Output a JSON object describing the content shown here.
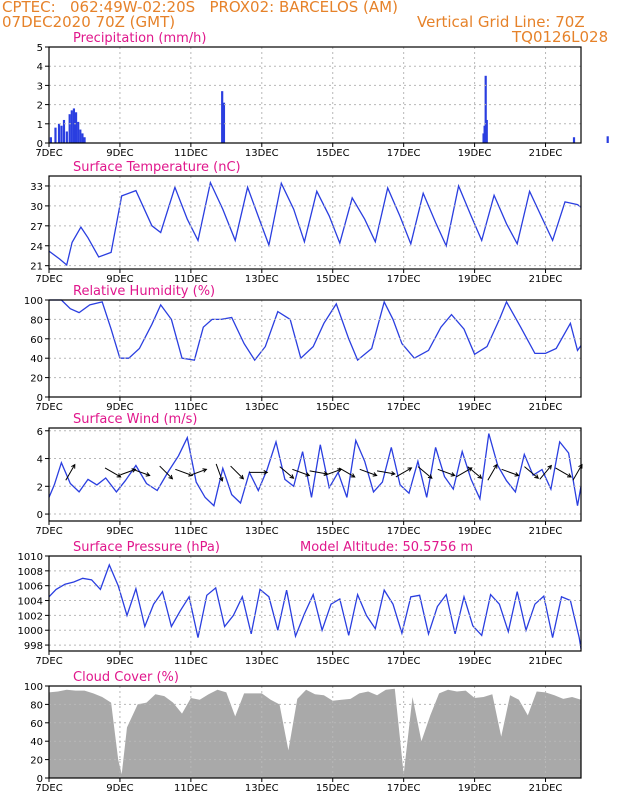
{
  "header": {
    "line1": "CPTEC:   062:49W-02:20S   PROX02: BARCELOS (AM)",
    "line2": "07DEC2020 70Z (GMT)",
    "grid_note": "Vertical Grid Line: 70Z",
    "run_code": "TQ0126L028"
  },
  "colors": {
    "header": "#e6822a",
    "title": "#e0178c",
    "series": "#2a3ee0",
    "cloud": "#a9a9a9",
    "grid": "#b8b8b8"
  },
  "x_axis": {
    "start": "07DEC2020",
    "end": "22DEC2020",
    "tick_labels": [
      "7DEC",
      "9DEC",
      "11DEC",
      "13DEC",
      "15DEC",
      "17DEC",
      "19DEC",
      "21DEC"
    ],
    "tick_days": [
      0,
      2,
      4,
      6,
      8,
      10,
      12,
      14
    ]
  },
  "chart_data": [
    {
      "id": "precip",
      "type": "bar",
      "title": "Precipitation  (mm/h)",
      "ylim": [
        0,
        5
      ],
      "yticks": [
        0,
        1,
        2,
        3,
        4,
        5
      ],
      "x": [
        0.05,
        0.18,
        0.28,
        0.35,
        0.42,
        0.5,
        0.58,
        0.64,
        0.7,
        0.76,
        0.82,
        0.88,
        0.94,
        1.0,
        4.88,
        4.93,
        12.25,
        12.28,
        12.31,
        12.34,
        14.8,
        15.75
      ],
      "values": [
        0.3,
        0.8,
        1.0,
        0.9,
        1.2,
        0.6,
        1.5,
        1.7,
        1.8,
        1.6,
        1.1,
        0.7,
        0.5,
        0.3,
        2.7,
        2.1,
        0.5,
        0.9,
        3.5,
        1.2,
        0.3,
        0.35
      ]
    },
    {
      "id": "temp",
      "type": "line",
      "title": "Surface Temperature (nC)",
      "ylim": [
        20.5,
        34.5
      ],
      "yticks": [
        21,
        24,
        27,
        30,
        33
      ],
      "x": [
        0,
        0.3,
        0.5,
        0.65,
        0.9,
        1.1,
        1.4,
        1.75,
        2.05,
        2.45,
        2.9,
        3.15,
        3.55,
        3.9,
        4.2,
        4.55,
        4.9,
        5.25,
        5.6,
        5.9,
        6.2,
        6.55,
        6.9,
        7.2,
        7.55,
        7.9,
        8.2,
        8.55,
        8.9,
        9.2,
        9.55,
        9.9,
        10.2,
        10.55,
        10.9,
        11.2,
        11.55,
        11.9,
        12.2,
        12.55,
        12.9,
        13.2,
        13.55,
        13.9,
        14.2,
        14.55,
        14.9,
        15
      ],
      "values": [
        23.2,
        22,
        21.1,
        24.5,
        26.8,
        25.2,
        22.3,
        23,
        31.5,
        32.3,
        27,
        26,
        32.8,
        28,
        24.8,
        33.5,
        29.5,
        24.8,
        32.8,
        28.4,
        24.1,
        33.4,
        29.5,
        24.6,
        32.2,
        28.5,
        24.4,
        31.2,
        28,
        24.6,
        32.7,
        28.4,
        24.3,
        31.9,
        27.5,
        24,
        33,
        28.5,
        24.8,
        31.6,
        27.3,
        24.3,
        32.2,
        28.2,
        24.8,
        30.6,
        30.2,
        29.8
      ]
    },
    {
      "id": "rh",
      "type": "line",
      "title": "Relative Humidity (%)",
      "ylim": [
        0,
        100
      ],
      "yticks": [
        0,
        20,
        40,
        60,
        80,
        100
      ],
      "x": [
        0,
        0.35,
        0.6,
        0.85,
        1.15,
        1.5,
        1.75,
        2.0,
        2.25,
        2.55,
        2.9,
        3.15,
        3.45,
        3.75,
        4.1,
        4.35,
        4.6,
        4.85,
        5.15,
        5.5,
        5.8,
        6.1,
        6.45,
        6.8,
        7.1,
        7.45,
        7.75,
        8.1,
        8.45,
        8.7,
        9.1,
        9.45,
        9.7,
        9.95,
        10.3,
        10.7,
        11.05,
        11.35,
        11.7,
        12.0,
        12.35,
        12.7,
        12.9,
        13.3,
        13.7,
        14.0,
        14.3,
        14.7,
        14.9,
        15
      ],
      "values": [
        100,
        100,
        91,
        87,
        95,
        98,
        70,
        40,
        40,
        50,
        75,
        95,
        80,
        40,
        38,
        72,
        80,
        80,
        82,
        55,
        38,
        52,
        88,
        80,
        40,
        52,
        76,
        96,
        60,
        38,
        50,
        98,
        80,
        55,
        40,
        48,
        72,
        85,
        70,
        44,
        52,
        80,
        98,
        72,
        45,
        45,
        50,
        76,
        48,
        53
      ]
    },
    {
      "id": "wind",
      "type": "line",
      "title": "Surface Wind (m/s)",
      "ylim": [
        -0.5,
        6.2
      ],
      "yticks": [
        0,
        2,
        4,
        6
      ],
      "x": [
        0,
        0.15,
        0.35,
        0.6,
        0.85,
        1.1,
        1.35,
        1.6,
        1.9,
        2.15,
        2.45,
        2.75,
        3.05,
        3.35,
        3.65,
        3.9,
        4.15,
        4.4,
        4.65,
        4.9,
        5.15,
        5.4,
        5.65,
        5.9,
        6.15,
        6.4,
        6.65,
        6.9,
        7.15,
        7.4,
        7.65,
        7.9,
        8.15,
        8.4,
        8.65,
        8.9,
        9.15,
        9.4,
        9.65,
        9.9,
        10.15,
        10.4,
        10.65,
        10.9,
        11.15,
        11.4,
        11.65,
        11.9,
        12.15,
        12.4,
        12.65,
        12.9,
        13.15,
        13.4,
        13.65,
        13.9,
        14.15,
        14.4,
        14.65,
        14.9,
        15
      ],
      "values": [
        1.2,
        2.1,
        3.7,
        2.2,
        1.6,
        2.5,
        2.1,
        2.6,
        1.6,
        2.4,
        3.5,
        2.2,
        1.7,
        3.0,
        4.2,
        5.5,
        2.3,
        1.2,
        0.6,
        3.3,
        1.4,
        0.8,
        3.0,
        1.7,
        3.2,
        5.2,
        2.5,
        2.0,
        4.5,
        1.2,
        5.0,
        1.9,
        3.0,
        1.2,
        5.3,
        3.8,
        1.6,
        2.3,
        4.8,
        2.1,
        1.5,
        3.8,
        1.2,
        4.8,
        2.7,
        1.8,
        4.5,
        2.5,
        1.1,
        5.8,
        3.5,
        2.4,
        1.6,
        4.3,
        2.8,
        3.2,
        1.8,
        5.2,
        4.4,
        0.6,
        2.0
      ],
      "barb_x": [
        0.6,
        1.8,
        2.2,
        2.6,
        3.3,
        3.8,
        4.2,
        4.8,
        5.3,
        5.9,
        6.7,
        7.1,
        7.6,
        8.0,
        8.4,
        9.0,
        9.5,
        10.0,
        10.6,
        11.2,
        11.7,
        12.0,
        12.5,
        13.0,
        13.6,
        14.0,
        14.5,
        14.9
      ],
      "barb_angle": [
        60,
        -30,
        20,
        -20,
        -45,
        -20,
        20,
        -70,
        -45,
        0,
        -40,
        -20,
        -10,
        20,
        -30,
        -20,
        -10,
        30,
        -40,
        -20,
        30,
        -40,
        60,
        -20,
        -40,
        50,
        -30,
        60
      ]
    },
    {
      "id": "pres",
      "type": "line",
      "title": "Surface Pressure (hPa)",
      "annotation": "Model Altitude: 50.5756 m",
      "ylim": [
        997.2,
        1010
      ],
      "yticks": [
        998,
        1000,
        1002,
        1004,
        1006,
        1008,
        1010
      ],
      "x": [
        0,
        0.2,
        0.45,
        0.7,
        0.95,
        1.2,
        1.45,
        1.7,
        1.95,
        2.2,
        2.45,
        2.7,
        2.95,
        3.2,
        3.45,
        3.7,
        3.95,
        4.2,
        4.45,
        4.7,
        4.95,
        5.2,
        5.45,
        5.7,
        5.95,
        6.2,
        6.45,
        6.7,
        6.95,
        7.2,
        7.45,
        7.7,
        7.95,
        8.2,
        8.45,
        8.7,
        8.95,
        9.2,
        9.45,
        9.7,
        9.95,
        10.2,
        10.45,
        10.7,
        10.95,
        11.2,
        11.45,
        11.7,
        11.95,
        12.2,
        12.45,
        12.7,
        12.95,
        13.2,
        13.45,
        13.7,
        13.95,
        14.2,
        14.45,
        14.7,
        14.95,
        15
      ],
      "values": [
        1004.5,
        1005.5,
        1006.2,
        1006.5,
        1007,
        1006.8,
        1005.5,
        1008.8,
        1006,
        1002,
        1005.6,
        1000.5,
        1003.5,
        1005.2,
        1000.5,
        1002.6,
        1004.5,
        999,
        1004.7,
        1005.7,
        1000.5,
        1002,
        1004.5,
        999.5,
        1005.5,
        1004.5,
        1000,
        1005.4,
        999.2,
        1002.2,
        1004.8,
        1000,
        1003.5,
        1004.2,
        999.3,
        1004.8,
        1002,
        1000.2,
        1005.4,
        1003.5,
        999.6,
        1004.5,
        1004.7,
        999.5,
        1003.2,
        1004.8,
        999.5,
        1004.5,
        1000.6,
        999.3,
        1004.8,
        1003.5,
        999.8,
        1005.2,
        1000,
        1003.5,
        1004.6,
        999,
        1004.5,
        1004,
        999,
        997.5
      ]
    },
    {
      "id": "cloud",
      "type": "area",
      "title": "Cloud Cover (%)",
      "ylim": [
        0,
        100
      ],
      "yticks": [
        0,
        20,
        40,
        60,
        80,
        100
      ],
      "x": [
        0,
        0.25,
        0.5,
        0.75,
        1.0,
        1.25,
        1.5,
        1.75,
        1.95,
        2.05,
        2.2,
        2.5,
        2.75,
        3.0,
        3.25,
        3.5,
        3.75,
        4.0,
        4.25,
        4.5,
        4.75,
        5.0,
        5.25,
        5.5,
        5.75,
        6.0,
        6.25,
        6.5,
        6.75,
        7.0,
        7.25,
        7.5,
        7.75,
        8.0,
        8.25,
        8.5,
        8.75,
        9.0,
        9.25,
        9.5,
        9.75,
        10.0,
        10.25,
        10.5,
        10.75,
        11.0,
        11.25,
        11.5,
        11.75,
        12.0,
        12.25,
        12.5,
        12.75,
        13.0,
        13.25,
        13.5,
        13.75,
        14.0,
        14.25,
        14.5,
        14.75,
        15
      ],
      "values": [
        93,
        94,
        96,
        95,
        95,
        92,
        88,
        82,
        20,
        4,
        55,
        80,
        82,
        91,
        89,
        82,
        70,
        87,
        85,
        91,
        96,
        93,
        67,
        92,
        92,
        92,
        85,
        80,
        30,
        86,
        96,
        91,
        90,
        84,
        85,
        86,
        92,
        94,
        90,
        96,
        97,
        4,
        88,
        40,
        68,
        92,
        96,
        94,
        95,
        87,
        88,
        91,
        45,
        90,
        85,
        68,
        94,
        93,
        90,
        86,
        88,
        85
      ]
    }
  ]
}
